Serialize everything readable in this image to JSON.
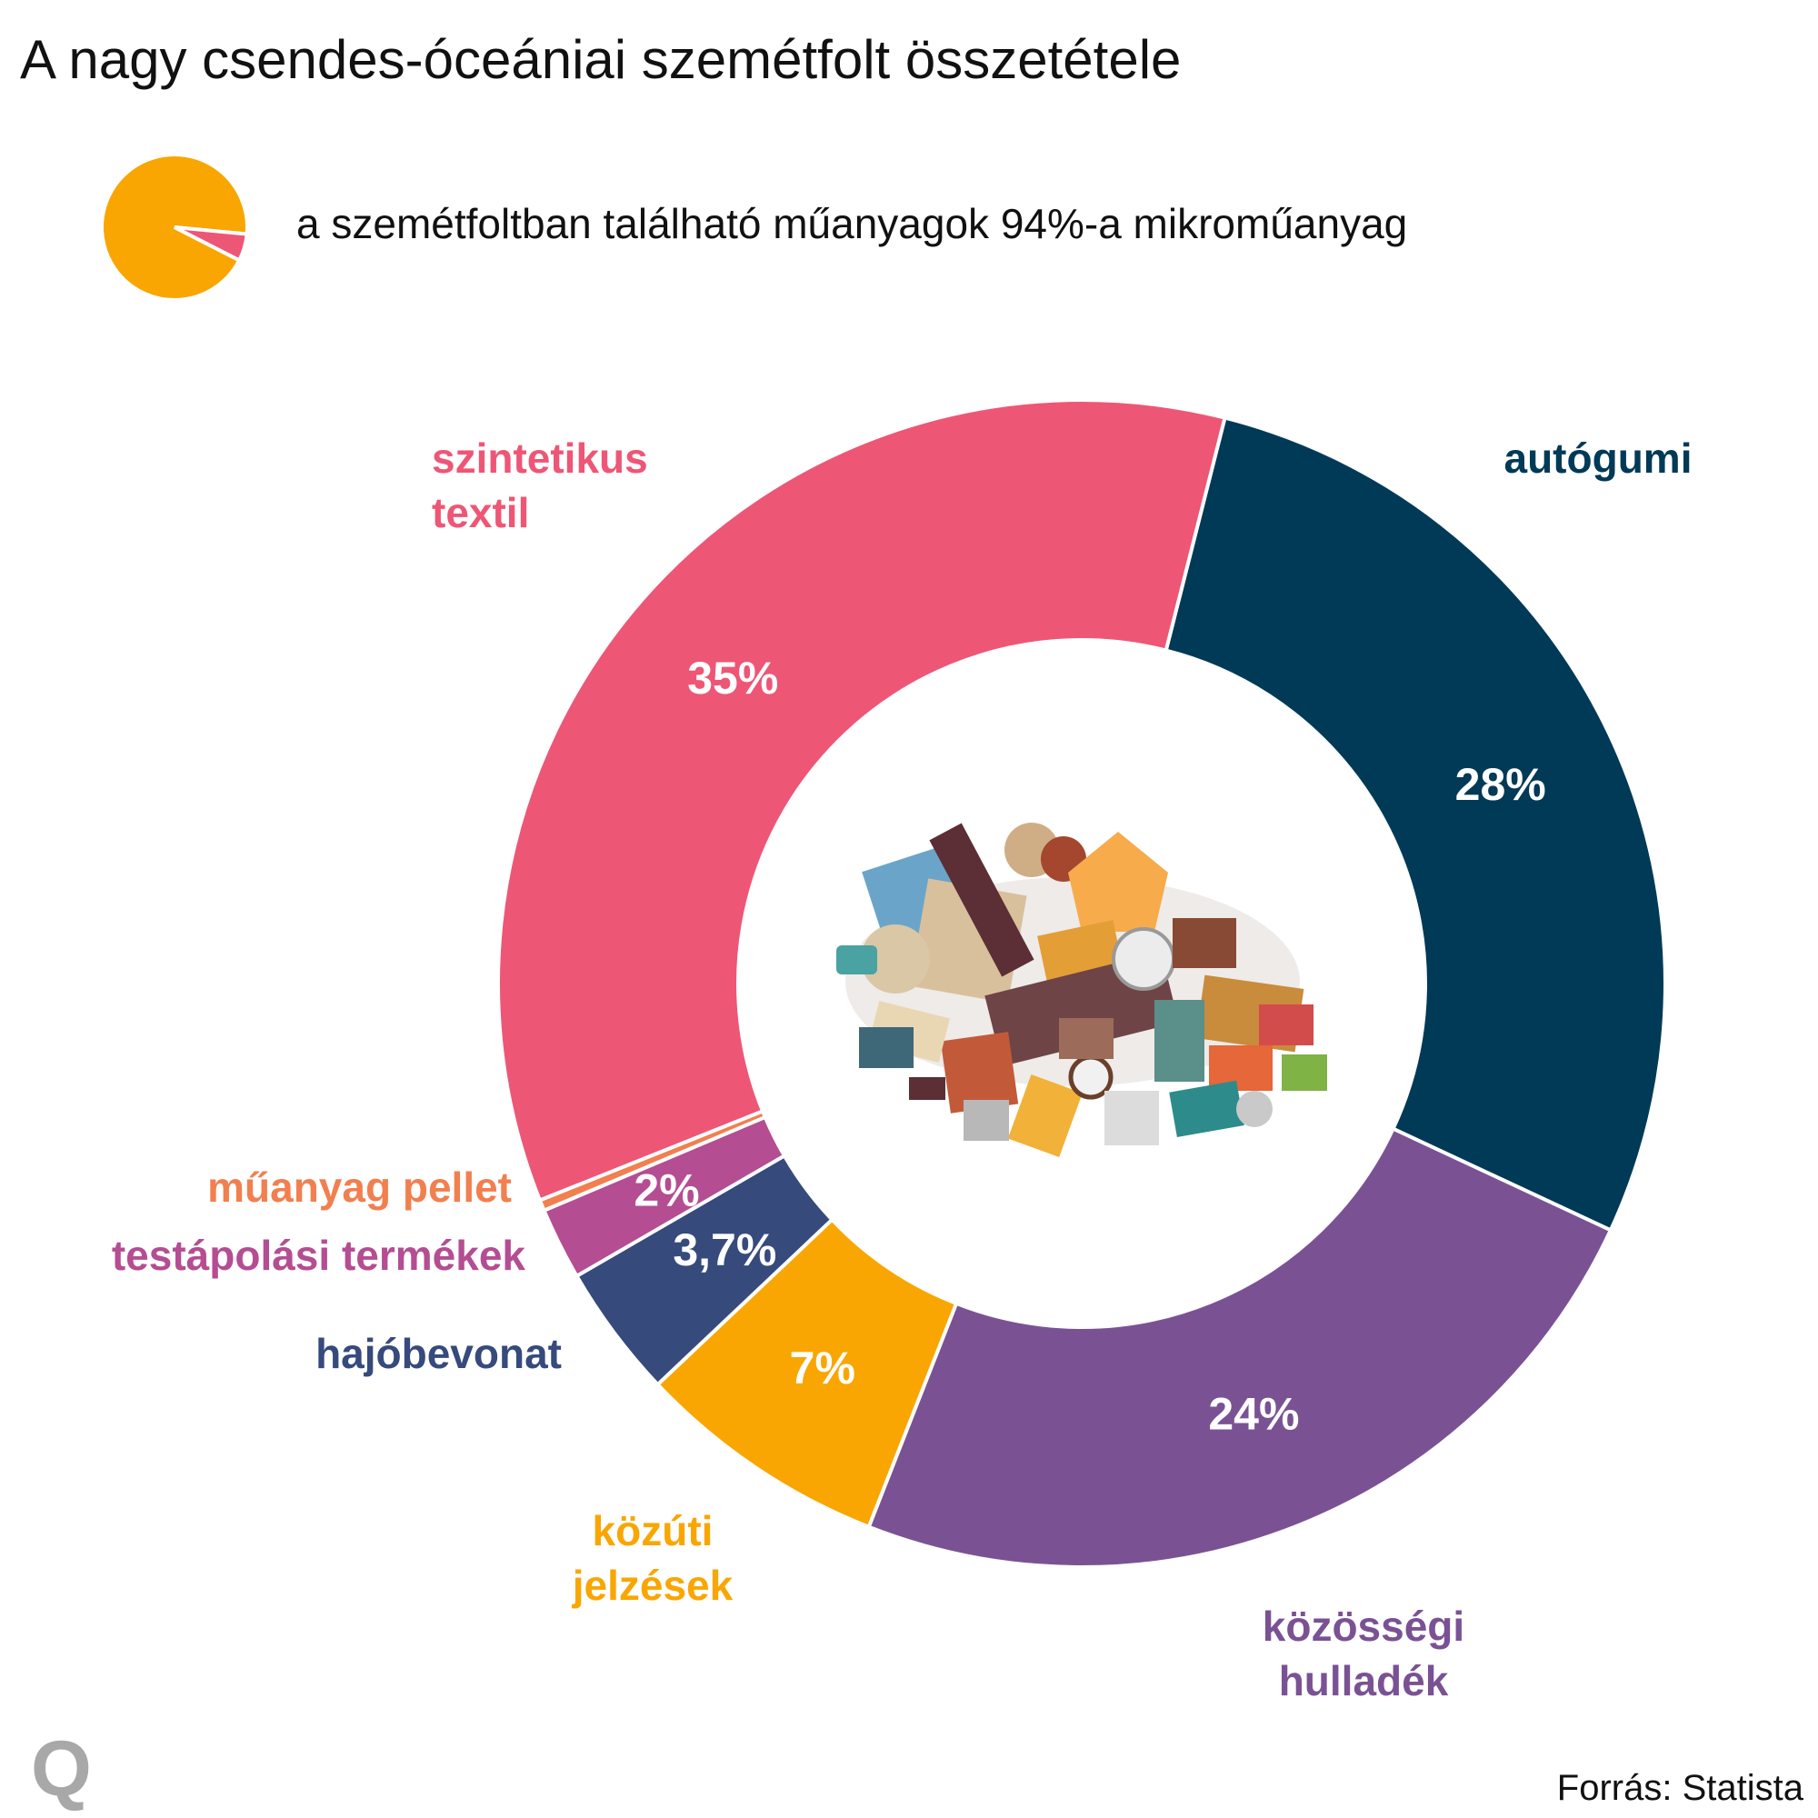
{
  "title": "A nagy csendes-óceániai szemétfolt összetétele",
  "legend": {
    "text": "a szemétfoltban található műanyagok 94%-a mikroműanyag",
    "pie": [
      {
        "value": 94,
        "color": "#f9a602"
      },
      {
        "value": 6,
        "color": "#ee5676"
      }
    ]
  },
  "chart_data": {
    "type": "pie",
    "title": "A nagy csendes-óceániai szemétfolt összetétele",
    "slices": [
      {
        "name_lines": [
          "autógumi"
        ],
        "value": 28,
        "value_label": "28%",
        "color": "#013a57"
      },
      {
        "name_lines": [
          "közösségi",
          "hulladék"
        ],
        "value": 24,
        "value_label": "24%",
        "color": "#7a5294"
      },
      {
        "name_lines": [
          "közúti",
          "jelzések"
        ],
        "value": 7,
        "value_label": "7%",
        "color": "#f9a602"
      },
      {
        "name_lines": [
          "hajóbevonat"
        ],
        "value": 3.7,
        "value_label": "3,7%",
        "color": "#364a7c"
      },
      {
        "name_lines": [
          "testápolási termékek"
        ],
        "value": 2,
        "value_label": "2%",
        "color": "#b54d93"
      },
      {
        "name_lines": [
          "műanyag pellet"
        ],
        "value": 0.3,
        "value_label": "",
        "color": "#f27f4f"
      },
      {
        "name_lines": [
          "szintetikus",
          "textil"
        ],
        "value": 35,
        "value_label": "35%",
        "color": "#ee5676"
      }
    ]
  },
  "source": "Forrás: Statista",
  "logo": "Q"
}
